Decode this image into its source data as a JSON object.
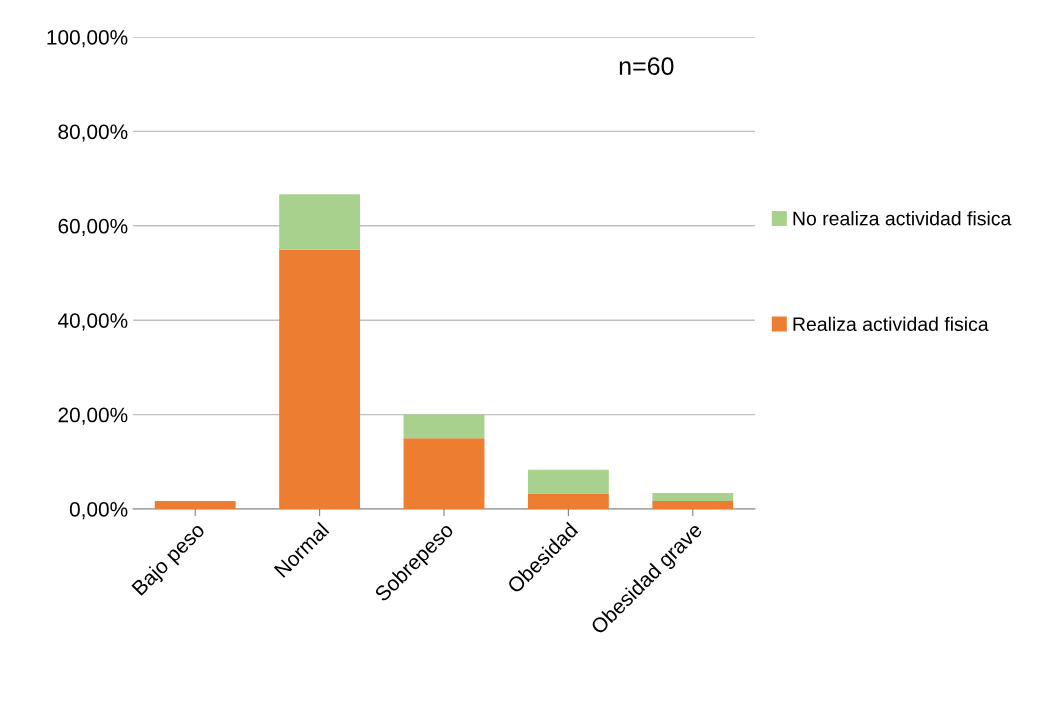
{
  "chart_data": {
    "type": "bar",
    "stacked": true,
    "categories": [
      "Bajo peso",
      "Normal",
      "Sobrepeso",
      "Obesidad",
      "Obesidad grave"
    ],
    "series": [
      {
        "name": "Realiza actividad fisica",
        "color": "#ed7d31",
        "values": [
          1.7,
          55,
          15,
          3.3,
          1.7
        ]
      },
      {
        "name": "No realiza actividad fisica",
        "color": "#a9d18e",
        "values": [
          0,
          11.7,
          5,
          5,
          1.7
        ]
      }
    ],
    "ylim": [
      0,
      100
    ],
    "yticks": [
      {
        "value": 0,
        "label": "0,00%"
      },
      {
        "value": 20,
        "label": "20,00%"
      },
      {
        "value": 40,
        "label": "40,00%"
      },
      {
        "value": 60,
        "label": "60,00%"
      },
      {
        "value": 80,
        "label": "80,00%"
      },
      {
        "value": 100,
        "label": "100,00%"
      }
    ],
    "grid": "y",
    "legend": "right",
    "annotations": [
      "n=60"
    ]
  }
}
